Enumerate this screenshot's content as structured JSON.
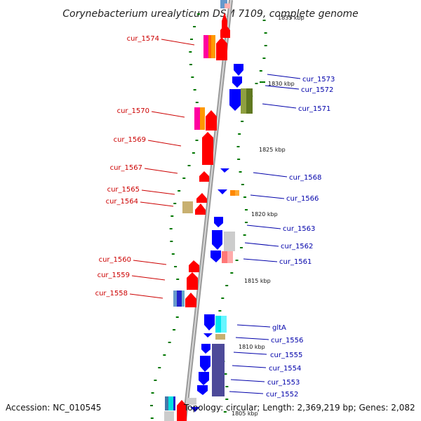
{
  "title": "Corynebacterium urealyticum DSM 7109, complete genome",
  "footer": {
    "accession": "Accession: NC_010545",
    "topology": "Topology: circular; Length: 2,369,219 bp; Genes: 2,082"
  },
  "scale_labels": [
    "1835 kbp",
    "1830 kbp",
    "1825 kbp",
    "1820 kbp",
    "1815 kbp",
    "1810 kbp",
    "1805 kbp"
  ],
  "left_genes": [
    "cur_1574",
    "cur_1570",
    "cur_1569",
    "cur_1567",
    "cur_1565",
    "cur_1564",
    "cur_1560",
    "cur_1559",
    "cur_1558"
  ],
  "right_genes": [
    "cur_1573",
    "cur_1572",
    "cur_1571",
    "cur_1568",
    "cur_1566",
    "cur_1563",
    "cur_1562",
    "cur_1561",
    "gltA",
    "cur_1556",
    "cur_1555",
    "cur_1554",
    "cur_1553",
    "cur_1552"
  ],
  "colors": {
    "forward_gene": "#ff0000",
    "reverse_gene": "#0000ff",
    "left_label": "#cc0000",
    "right_label": "#0000aa",
    "tick": "#007700",
    "backbone": "#999999"
  }
}
